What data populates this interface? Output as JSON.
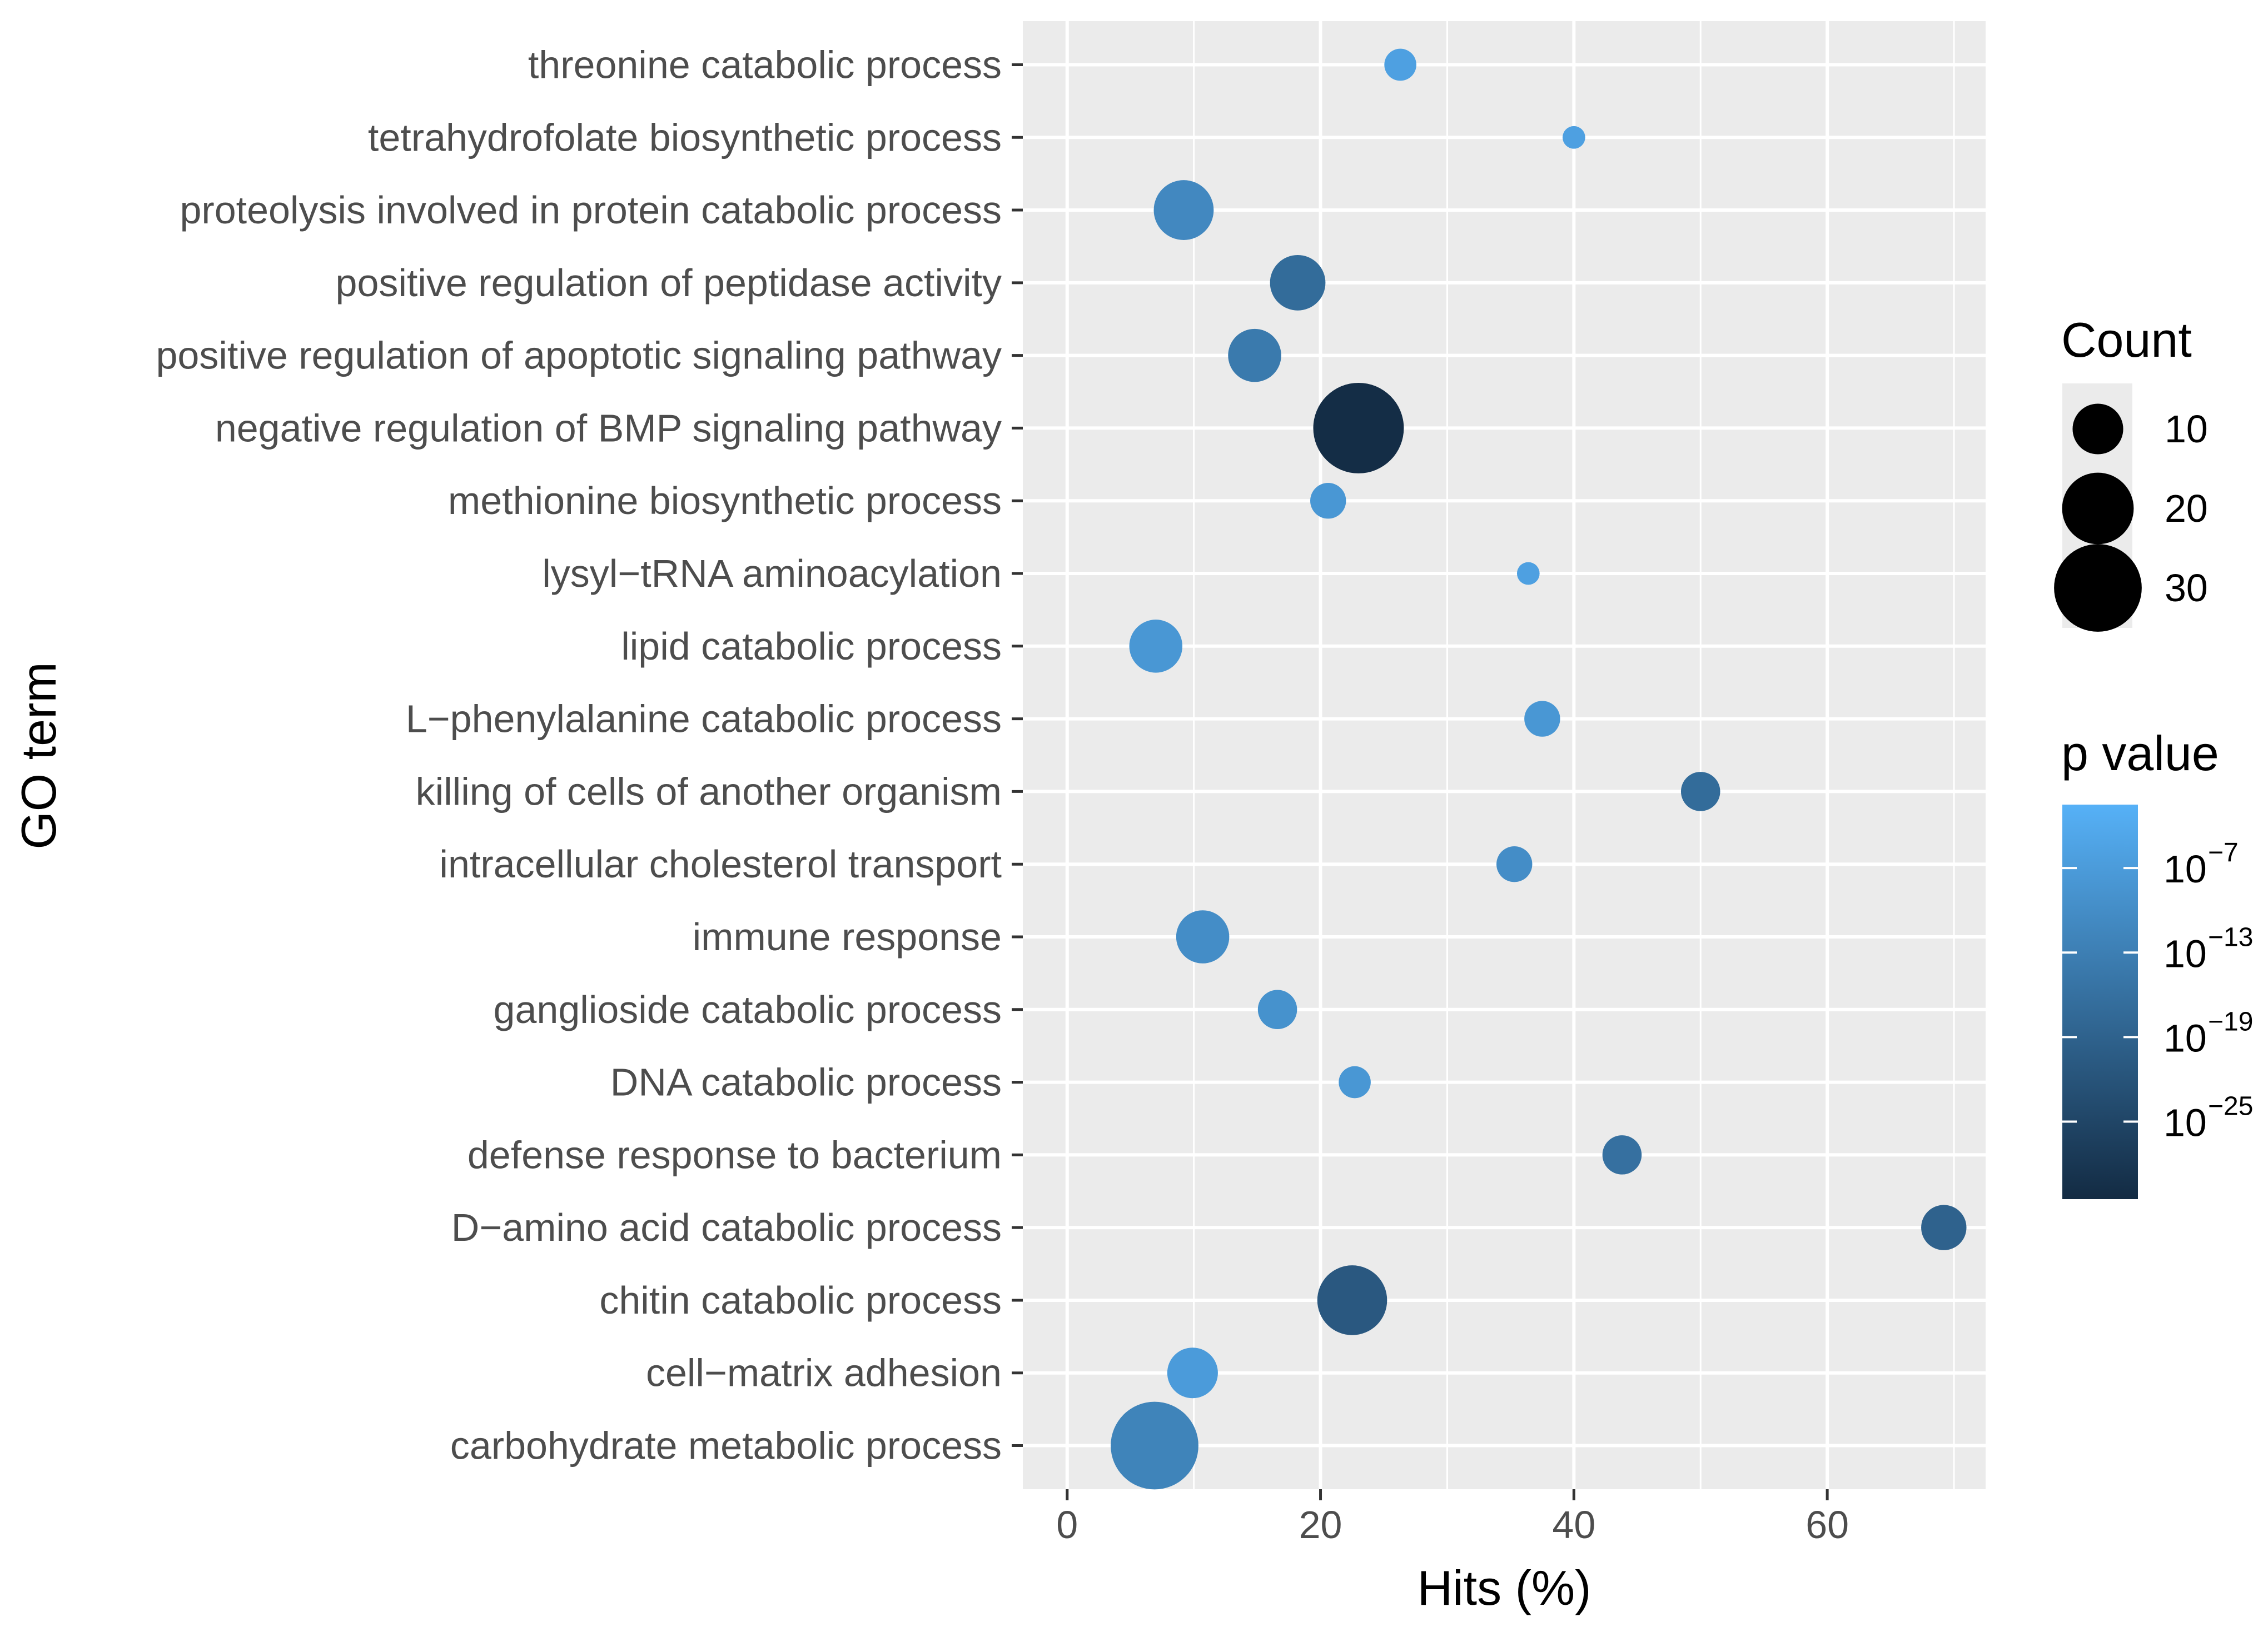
{
  "chart_data": {
    "type": "scatter",
    "xlabel": "Hits (%)",
    "ylabel": "GO term",
    "xlim": [
      -3.5,
      72.5
    ],
    "x_ticks": [
      {
        "value": 0,
        "label": "0"
      },
      {
        "value": 20,
        "label": "20"
      },
      {
        "value": 40,
        "label": "40"
      },
      {
        "value": 60,
        "label": "60"
      }
    ],
    "grid": true,
    "points": [
      {
        "term": "threonine catabolic process",
        "hits": 26.3,
        "count": 4,
        "p_log10": -6
      },
      {
        "term": "tetrahydrofolate biosynthetic process",
        "hits": 40.0,
        "count": 2,
        "p_log10": -6
      },
      {
        "term": "proteolysis involved in protein catabolic process",
        "hits": 9.2,
        "count": 14,
        "p_log10": -11
      },
      {
        "term": "positive regulation of peptidase activity",
        "hits": 18.2,
        "count": 12,
        "p_log10": -17
      },
      {
        "term": "positive regulation of apoptotic signaling pathway",
        "hits": 14.8,
        "count": 11,
        "p_log10": -14
      },
      {
        "term": "negative regulation of BMP signaling pathway",
        "hits": 23.0,
        "count": 32,
        "p_log10": -30
      },
      {
        "term": "methionine biosynthetic process",
        "hits": 20.6,
        "count": 5,
        "p_log10": -8
      },
      {
        "term": "lysyl−tRNA aminoacylation",
        "hits": 36.4,
        "count": 2,
        "p_log10": -6
      },
      {
        "term": "lipid catabolic process",
        "hits": 7.0,
        "count": 11,
        "p_log10": -8
      },
      {
        "term": "L−phenylalanine catabolic process",
        "hits": 37.5,
        "count": 5,
        "p_log10": -8
      },
      {
        "term": "killing of cells of another organism",
        "hits": 50.0,
        "count": 6,
        "p_log10": -17
      },
      {
        "term": "intracellular cholesterol transport",
        "hits": 35.3,
        "count": 5,
        "p_log10": -10
      },
      {
        "term": "immune response",
        "hits": 10.7,
        "count": 11,
        "p_log10": -10
      },
      {
        "term": "ganglioside catabolic process",
        "hits": 16.6,
        "count": 6,
        "p_log10": -9
      },
      {
        "term": "DNA catabolic process",
        "hits": 22.7,
        "count": 4,
        "p_log10": -8
      },
      {
        "term": "defense response to bacterium",
        "hits": 43.8,
        "count": 6,
        "p_log10": -16
      },
      {
        "term": "D−amino acid catabolic process",
        "hits": 69.2,
        "count": 8,
        "p_log10": -19
      },
      {
        "term": "chitin catabolic process",
        "hits": 22.5,
        "count": 19,
        "p_log10": -21
      },
      {
        "term": "cell−matrix adhesion",
        "hits": 9.9,
        "count": 10,
        "p_log10": -7
      },
      {
        "term": "carbohydrate metabolic process",
        "hits": 6.9,
        "count": 30,
        "p_log10": -12
      }
    ],
    "legend_size": {
      "title": "Count",
      "entries": [
        {
          "value": 10,
          "label": "10"
        },
        {
          "value": 20,
          "label": "20"
        },
        {
          "value": 30,
          "label": "30"
        }
      ]
    },
    "legend_color": {
      "title": "p value",
      "low_color": "#56B1F7",
      "high_color": "#132B43",
      "range_log10": [
        -2.5,
        -30.5
      ],
      "ticks": [
        {
          "exponent": -7,
          "base": "10",
          "sup": "−7"
        },
        {
          "exponent": -13,
          "base": "10",
          "sup": "−13"
        },
        {
          "exponent": -19,
          "base": "10",
          "sup": "−19"
        },
        {
          "exponent": -25,
          "base": "10",
          "sup": "−25"
        }
      ]
    },
    "colors": {
      "panel_bg": "#EBEBEB",
      "grid_color": "#FFFFFF",
      "text_color": "#4D4D4D",
      "title_color": "#000000",
      "legend_bg": "#EBEBEB"
    }
  }
}
